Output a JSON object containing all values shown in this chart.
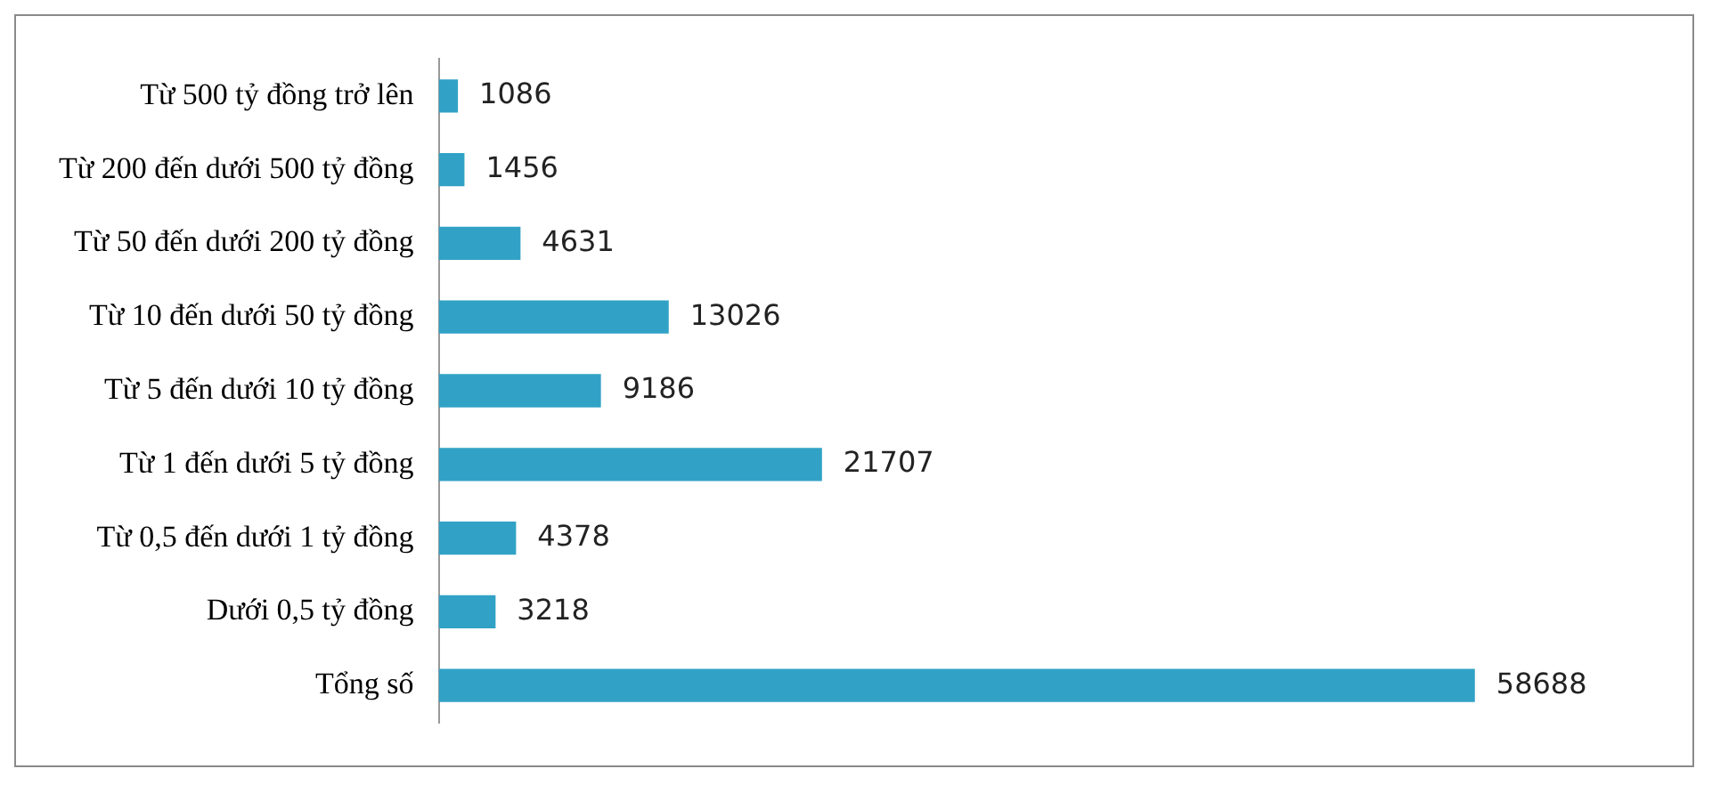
{
  "chart_data": {
    "type": "bar",
    "orientation": "horizontal",
    "categories": [
      "Từ 500 tỷ đồng trở lên",
      "Từ 200 đến dưới 500 tỷ đồng",
      "Từ 50 đến dưới 200 tỷ đồng",
      "Từ 10 đến dưới 50 tỷ đồng",
      "Từ 5 đến dưới 10 tỷ đồng",
      "Từ 1 đến dưới 5 tỷ đồng",
      "Từ 0,5 đến dưới 1 tỷ đồng",
      "Dưới 0,5 tỷ đồng",
      "Tổng số"
    ],
    "values": [
      1086,
      1456,
      4631,
      13026,
      9186,
      21707,
      4378,
      3218,
      58688
    ],
    "color": "#31a2c6",
    "data_labels": true,
    "legend": false,
    "tick_labels": "y"
  }
}
